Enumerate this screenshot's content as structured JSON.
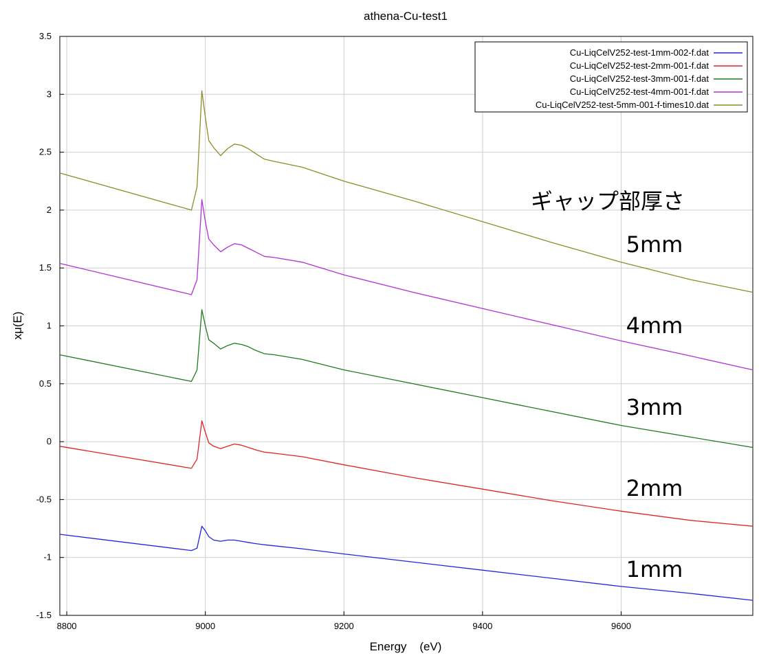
{
  "chart_data": {
    "type": "line",
    "title": "athena-Cu-test1",
    "xlabel": "Energy    (eV)",
    "ylabel": "xμ(E)",
    "xlim": [
      8790,
      9790
    ],
    "ylim": [
      -1.5,
      3.5
    ],
    "xticks": [
      8800,
      9000,
      9200,
      9400,
      9600
    ],
    "yticks": [
      -1.5,
      -1,
      -0.5,
      0,
      0.5,
      1,
      1.5,
      2,
      2.5,
      3,
      3.5
    ],
    "ytick_labels": [
      "-1.5",
      "-1",
      "-0.5",
      "0",
      "0.5",
      "1",
      "1.5",
      "2",
      "2.5",
      "3",
      "3.5"
    ],
    "grid": true,
    "legend_position": "top-right",
    "series": [
      {
        "name": "Cu-LiqCelV252-test-1mm-002-f.dat",
        "color": "#2323e0",
        "x": [
          8790,
          8980,
          8988,
          8995,
          9000,
          9005,
          9012,
          9022,
          9032,
          9042,
          9052,
          9062,
          9072,
          9085,
          9100,
          9140,
          9200,
          9300,
          9400,
          9500,
          9600,
          9700,
          9790
        ],
        "y": [
          -0.8,
          -0.94,
          -0.92,
          -0.73,
          -0.77,
          -0.82,
          -0.85,
          -0.86,
          -0.85,
          -0.85,
          -0.86,
          -0.87,
          -0.88,
          -0.89,
          -0.9,
          -0.925,
          -0.97,
          -1.04,
          -1.11,
          -1.18,
          -1.25,
          -1.31,
          -1.37
        ]
      },
      {
        "name": "Cu-LiqCelV252-test-2mm-001-f.dat",
        "color": "#e02323",
        "x": [
          8790,
          8980,
          8988,
          8995,
          9000,
          9005,
          9012,
          9022,
          9032,
          9042,
          9052,
          9062,
          9072,
          9085,
          9100,
          9140,
          9200,
          9300,
          9400,
          9500,
          9600,
          9700,
          9790
        ],
        "y": [
          -0.04,
          -0.23,
          -0.15,
          0.18,
          0.08,
          -0.01,
          -0.04,
          -0.06,
          -0.04,
          -0.02,
          -0.03,
          -0.05,
          -0.07,
          -0.09,
          -0.1,
          -0.13,
          -0.2,
          -0.31,
          -0.41,
          -0.51,
          -0.6,
          -0.68,
          -0.73
        ]
      },
      {
        "name": "Cu-LiqCelV252-test-3mm-001-f.dat",
        "color": "#1e7a1e",
        "x": [
          8790,
          8980,
          8988,
          8995,
          9000,
          9005,
          9012,
          9022,
          9032,
          9042,
          9052,
          9062,
          9072,
          9085,
          9100,
          9140,
          9200,
          9300,
          9400,
          9500,
          9600,
          9700,
          9790
        ],
        "y": [
          0.75,
          0.52,
          0.62,
          1.14,
          1.0,
          0.88,
          0.85,
          0.8,
          0.83,
          0.85,
          0.84,
          0.82,
          0.79,
          0.76,
          0.75,
          0.71,
          0.62,
          0.5,
          0.38,
          0.26,
          0.14,
          0.04,
          -0.05
        ]
      },
      {
        "name": "Cu-LiqCelV252-test-4mm-001-f.dat",
        "color": "#b030d8",
        "x": [
          8790,
          8980,
          8988,
          8995,
          9000,
          9005,
          9012,
          9022,
          9032,
          9042,
          9052,
          9062,
          9072,
          9085,
          9100,
          9140,
          9200,
          9300,
          9400,
          9500,
          9600,
          9700,
          9790
        ],
        "y": [
          1.54,
          1.27,
          1.4,
          2.09,
          1.9,
          1.75,
          1.7,
          1.64,
          1.68,
          1.71,
          1.7,
          1.67,
          1.64,
          1.6,
          1.59,
          1.55,
          1.44,
          1.29,
          1.15,
          1.01,
          0.87,
          0.74,
          0.62
        ]
      },
      {
        "name": "Cu-LiqCelV252-test-5mm-001-f-times10.dat",
        "color": "#8c8c28",
        "x": [
          8790,
          8980,
          8988,
          8995,
          9000,
          9005,
          9012,
          9022,
          9032,
          9042,
          9052,
          9062,
          9072,
          9085,
          9100,
          9140,
          9200,
          9300,
          9400,
          9500,
          9600,
          9700,
          9790
        ],
        "y": [
          2.32,
          2.0,
          2.2,
          3.03,
          2.8,
          2.6,
          2.54,
          2.47,
          2.53,
          2.57,
          2.56,
          2.53,
          2.49,
          2.44,
          2.42,
          2.37,
          2.25,
          2.08,
          1.9,
          1.72,
          1.55,
          1.4,
          1.29
        ]
      }
    ],
    "annotations": [
      "ギャップ部厚さ",
      "5mm",
      "4mm",
      "3mm",
      "2mm",
      "1mm"
    ]
  }
}
